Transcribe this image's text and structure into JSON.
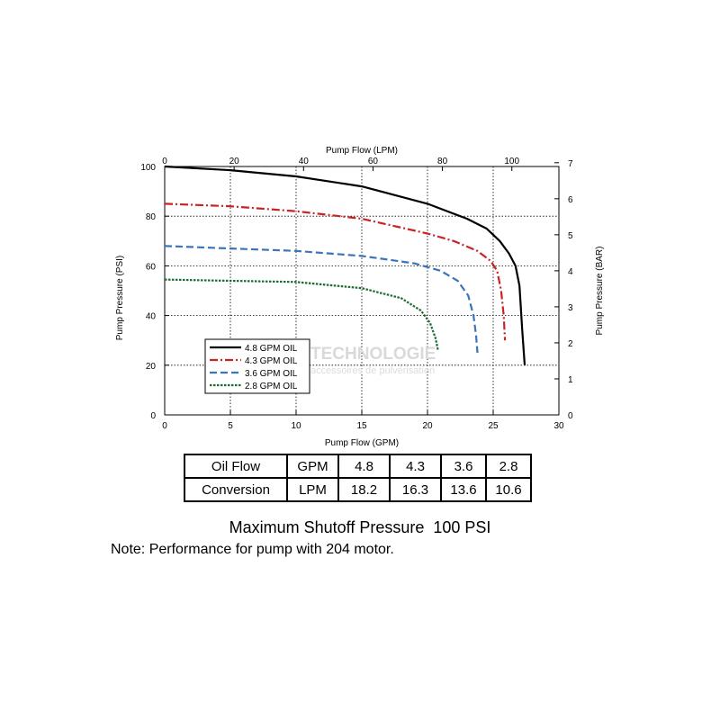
{
  "chart_data": {
    "type": "line",
    "xlabel": "Pump Flow (GPM)",
    "x2label": "Pump Flow (LPM)",
    "ylabel": "Pump Pressure (PSI)",
    "y2label": "Pump Pressure (BAR)",
    "xlim": [
      0,
      30
    ],
    "ylim": [
      0,
      100
    ],
    "x2lim": [
      0,
      113.55
    ],
    "y2lim": [
      0,
      6.895
    ],
    "xticks": [
      0,
      5,
      10,
      15,
      20,
      25,
      30
    ],
    "yticks": [
      0,
      20,
      40,
      60,
      80,
      100
    ],
    "x2ticks": [
      0,
      20,
      40,
      60,
      80,
      100
    ],
    "y2ticks": [
      0,
      1,
      2,
      3,
      4,
      5,
      6,
      7
    ],
    "grid": true,
    "legend_position": "bottom-left",
    "series": [
      {
        "name": "4.8 GPM OIL",
        "color": "#000000",
        "dash": "solid",
        "x": [
          0,
          5,
          10,
          15,
          20,
          23,
          24.5,
          25.5,
          26.2,
          26.7,
          27.0,
          27.2,
          27.4
        ],
        "y": [
          100,
          98.5,
          96,
          92,
          85,
          79,
          75,
          70,
          65,
          60,
          52,
          35,
          20
        ]
      },
      {
        "name": "4.3 GPM OIL",
        "color": "#cc2222",
        "dash": "dashdot",
        "x": [
          0,
          5,
          10,
          15,
          20,
          22,
          23.8,
          24.8,
          25.3,
          25.6,
          25.8,
          25.9
        ],
        "y": [
          85,
          84,
          82,
          79,
          73,
          70,
          66,
          62,
          58,
          50,
          40,
          30
        ]
      },
      {
        "name": "3.6 GPM OIL",
        "color": "#3a75bb",
        "dash": "dash",
        "x": [
          0,
          5,
          10,
          15,
          19,
          21,
          22.3,
          23.1,
          23.5,
          23.7,
          23.8
        ],
        "y": [
          68,
          67,
          66,
          64,
          61,
          58,
          54,
          48,
          40,
          32,
          25
        ]
      },
      {
        "name": "2.8 GPM OIL",
        "color": "#1e6b2e",
        "dash": "dot",
        "x": [
          0,
          5,
          10,
          15,
          18,
          19.5,
          20.2,
          20.6,
          20.8
        ],
        "y": [
          54.5,
          54,
          53.5,
          51,
          47,
          42,
          37,
          31,
          26
        ]
      }
    ]
  },
  "watermark": {
    "text": "TECHNOLOGIE",
    "subtext": "accessoires de pulvérisation"
  },
  "table": {
    "rows": [
      [
        "Oil Flow",
        "GPM",
        "4.8",
        "4.3",
        "3.6",
        "2.8"
      ],
      [
        "Conversion",
        "LPM",
        "18.2",
        "16.3",
        "13.6",
        "10.6"
      ]
    ]
  },
  "caption": "Maximum Shutoff Pressure  100 PSI",
  "note": "Note: Performance for pump with 204 motor."
}
